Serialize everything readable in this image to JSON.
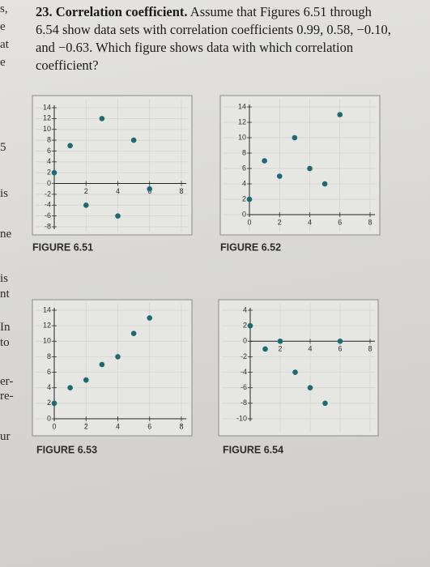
{
  "problem": {
    "number_title": "23. Correlation coefficient.",
    "body": "Assume that Figures 6.51 through 6.54 show data sets with correlation coefficients 0.99, 0.58, −0.10, and −0.63. Which figure shows data with which correlation coefficient?"
  },
  "margin_fragments": [
    "s,",
    "e",
    "at",
    "e",
    "5",
    "is",
    "ne",
    "is",
    "nt",
    "In",
    "to",
    "er-",
    "re-",
    "ur"
  ],
  "chart_data": [
    {
      "type": "scatter",
      "title": "FIGURE 6.51",
      "color": "#1e6a73",
      "grid": true,
      "x": [
        0,
        1,
        2,
        3,
        4,
        5,
        6
      ],
      "values": [
        2,
        7,
        -4,
        12,
        -6,
        8,
        -1
      ],
      "xlim": [
        0,
        8
      ],
      "ylim": [
        -8,
        14
      ],
      "xticks": [
        2,
        4,
        6,
        8
      ],
      "yticks": [
        -8,
        -6,
        -4,
        -2,
        0,
        2,
        4,
        6,
        8,
        10,
        12,
        14
      ]
    },
    {
      "type": "scatter",
      "title": "FIGURE 6.52",
      "color": "#1e6a73",
      "grid": true,
      "x": [
        0,
        1,
        2,
        3,
        4,
        5,
        6
      ],
      "values": [
        2,
        7,
        5,
        10,
        6,
        4,
        13
      ],
      "xlim": [
        0,
        8
      ],
      "ylim": [
        0,
        14
      ],
      "xticks": [
        0,
        2,
        4,
        6,
        8
      ],
      "yticks": [
        0,
        2,
        4,
        6,
        8,
        10,
        12,
        14
      ]
    },
    {
      "type": "scatter",
      "title": "FIGURE 6.53",
      "color": "#1e6a73",
      "grid": true,
      "x": [
        0,
        1,
        2,
        3,
        4,
        5,
        6
      ],
      "values": [
        2,
        4,
        5,
        7,
        8,
        11,
        13
      ],
      "xlim": [
        0,
        8
      ],
      "ylim": [
        0,
        14
      ],
      "xticks": [
        0,
        2,
        4,
        6,
        8
      ],
      "yticks": [
        0,
        2,
        4,
        6,
        8,
        10,
        12,
        14
      ]
    },
    {
      "type": "scatter",
      "title": "FIGURE 6.54",
      "color": "#1e6a73",
      "grid": true,
      "x": [
        0,
        1,
        2,
        3,
        4,
        5,
        6
      ],
      "values": [
        2,
        -1,
        0,
        -4,
        -6,
        -8,
        0
      ],
      "xlim": [
        0,
        8
      ],
      "ylim": [
        -10,
        4
      ],
      "xticks": [
        2,
        4,
        6,
        8
      ],
      "yticks": [
        -10,
        -8,
        -6,
        -4,
        -2,
        0,
        2,
        4
      ]
    }
  ]
}
